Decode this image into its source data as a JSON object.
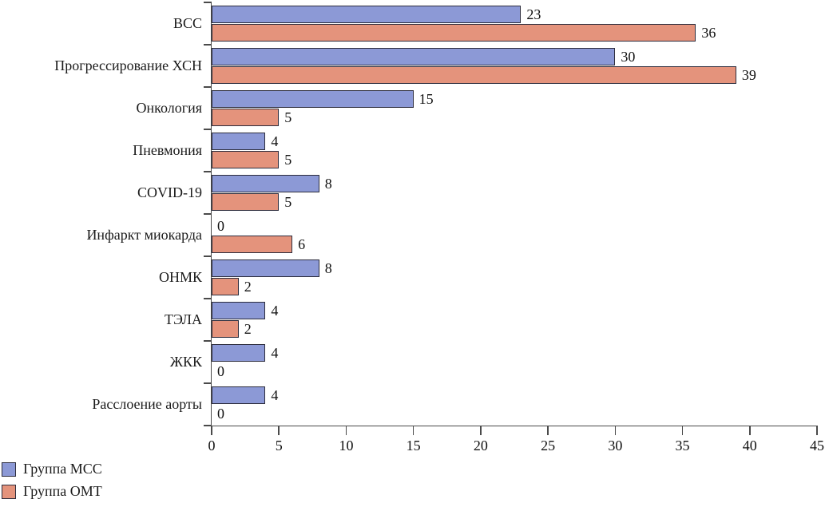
{
  "chart_data": {
    "type": "bar",
    "orientation": "horizontal",
    "title": "",
    "xlabel": "",
    "ylabel": "",
    "categories": [
      "ВСС",
      "Прогрессирование ХСН",
      "Онкология",
      "Пневмония",
      "COVID-19",
      "Инфаркт миокарда",
      "ОНМК",
      "ТЭЛА",
      "ЖКК",
      "Расслоение аорты"
    ],
    "series": [
      {
        "name": "Группа МСС",
        "color": "#8C99D6",
        "values": [
          23,
          30,
          15,
          4,
          8,
          0,
          8,
          4,
          4,
          4
        ]
      },
      {
        "name": "Группа ОМТ",
        "color": "#E4937C",
        "values": [
          36,
          39,
          5,
          5,
          5,
          6,
          2,
          2,
          0,
          0
        ]
      }
    ],
    "xlim": [
      0,
      45
    ],
    "x_ticks": [
      0,
      5,
      10,
      15,
      20,
      25,
      30,
      35,
      40,
      45
    ],
    "grid": false,
    "legend_position": "bottom-left",
    "value_labels": true
  },
  "legend": {
    "items": [
      {
        "label": "Группа МСС",
        "color": "#8C99D6"
      },
      {
        "label": "Группа ОМТ",
        "color": "#E4937C"
      }
    ]
  },
  "colors": {
    "bar_border": "#2d2d3d",
    "axis": "#4a4a4a",
    "text": "#1a1a1a",
    "background": "#ffffff"
  }
}
